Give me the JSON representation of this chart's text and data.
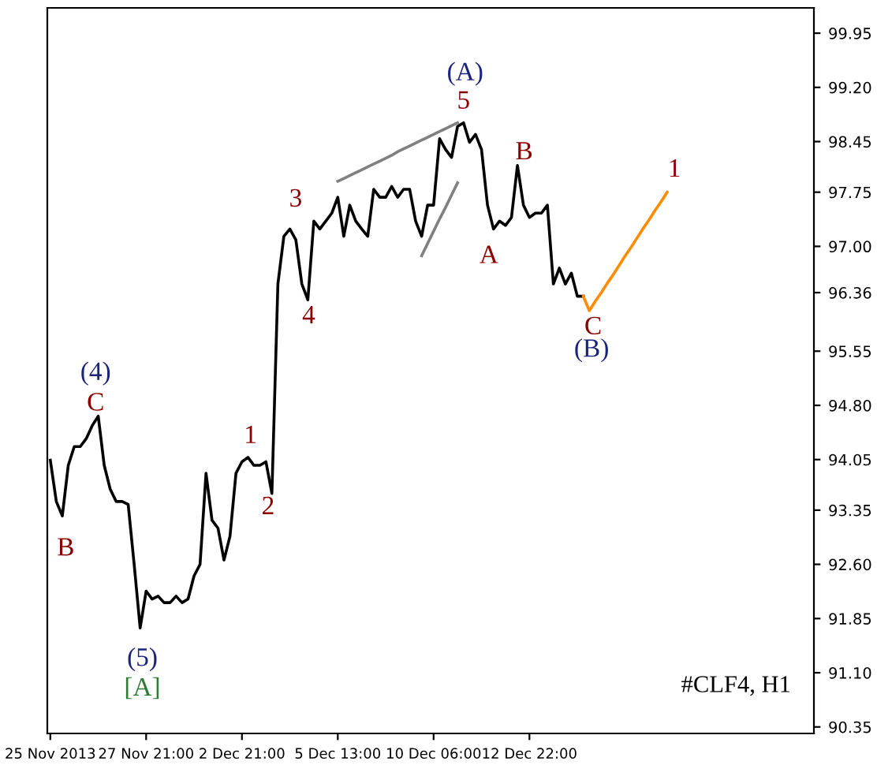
{
  "chart_data": {
    "type": "line",
    "categories": [
      "25 Nov 2013",
      null,
      null,
      null,
      null,
      null,
      null,
      null,
      null,
      null,
      null,
      null,
      null,
      null,
      null,
      null,
      "27 Nov 21:00",
      null,
      null,
      null,
      null,
      null,
      null,
      null,
      null,
      null,
      null,
      null,
      null,
      null,
      null,
      null,
      "2 Dec 21:00",
      null,
      null,
      null,
      null,
      null,
      null,
      null,
      null,
      null,
      null,
      null,
      null,
      null,
      null,
      null,
      "5 Dec 13:00",
      null,
      null,
      null,
      null,
      null,
      null,
      null,
      null,
      null,
      null,
      null,
      null,
      null,
      null,
      null,
      "10 Dec 06:00",
      null,
      null,
      null,
      null,
      null,
      null,
      null,
      null,
      null,
      null,
      null,
      null,
      null,
      null,
      null,
      "12 Dec 22:00",
      null,
      null,
      null,
      null,
      null,
      null,
      null,
      null,
      null,
      null,
      null,
      null,
      null,
      null,
      null,
      null,
      null,
      null,
      null,
      null,
      null,
      null,
      null,
      null,
      null,
      null,
      null,
      null,
      null,
      null,
      null,
      null,
      null,
      null,
      null,
      null,
      null,
      null,
      null,
      null,
      null,
      null,
      null,
      null,
      null,
      null,
      null
    ],
    "series": [
      {
        "color": "#000000",
        "values": [
          94.04,
          93.47,
          93.27,
          93.97,
          94.23,
          94.23,
          94.34,
          94.52,
          94.65,
          93.97,
          93.64,
          93.47,
          93.47,
          93.43,
          92.6,
          91.72,
          92.23,
          92.12,
          92.16,
          92.07,
          92.07,
          92.16,
          92.07,
          92.12,
          92.44,
          92.6,
          93.86,
          93.21,
          93.1,
          92.66,
          92.99,
          93.86,
          94.02,
          94.08,
          93.97,
          93.97,
          94.02,
          93.58,
          96.48,
          97.14,
          97.24,
          97.09,
          96.48,
          96.26,
          97.35,
          97.24,
          97.35,
          97.46,
          97.68,
          97.14,
          97.57,
          97.35,
          97.24,
          97.14,
          97.79,
          97.68,
          97.68,
          97.83,
          97.68,
          97.79,
          97.79,
          97.35,
          97.14,
          97.57,
          97.57,
          98.49,
          98.34,
          98.23,
          98.66,
          98.71,
          98.44,
          98.55,
          98.34,
          97.57,
          97.24,
          97.35,
          97.29,
          97.4,
          98.12,
          97.57,
          97.4,
          97.46,
          97.46,
          97.57,
          96.48,
          96.7,
          96.48,
          96.63,
          96.31,
          96.31,
          null,
          null,
          null,
          null,
          null,
          null,
          null,
          null,
          null,
          null,
          null,
          null,
          null,
          null,
          null,
          null,
          null,
          null,
          null,
          null,
          null,
          null,
          null,
          null,
          null,
          null,
          null,
          null,
          null,
          null,
          null,
          null,
          null,
          null,
          null,
          null,
          null,
          null
        ]
      },
      {
        "color": "#ff8c00",
        "values": [
          null,
          null,
          null,
          null,
          null,
          null,
          null,
          null,
          null,
          null,
          null,
          null,
          null,
          null,
          null,
          null,
          null,
          null,
          null,
          null,
          null,
          null,
          null,
          null,
          null,
          null,
          null,
          null,
          null,
          null,
          null,
          null,
          null,
          null,
          null,
          null,
          null,
          null,
          null,
          null,
          null,
          null,
          null,
          null,
          null,
          null,
          null,
          null,
          null,
          null,
          null,
          null,
          null,
          null,
          null,
          null,
          null,
          null,
          null,
          null,
          null,
          null,
          null,
          null,
          null,
          null,
          null,
          null,
          null,
          null,
          null,
          null,
          null,
          null,
          null,
          null,
          null,
          null,
          null,
          null,
          null,
          null,
          null,
          null,
          null,
          null,
          null,
          null,
          null,
          96.31,
          96.11,
          96.24,
          96.36,
          96.49,
          96.61,
          96.74,
          96.87,
          96.99,
          97.12,
          97.25,
          97.37,
          97.5,
          97.62,
          97.75,
          null,
          null,
          null,
          null,
          null,
          null,
          null,
          null,
          null,
          null,
          null,
          null,
          null,
          null,
          null,
          null,
          null,
          null,
          null,
          null,
          null,
          null,
          null,
          null
        ]
      },
      {
        "color": "#808080",
        "values": [
          null,
          null,
          null,
          null,
          null,
          null,
          null,
          null,
          null,
          null,
          null,
          null,
          null,
          null,
          null,
          null,
          null,
          null,
          null,
          null,
          null,
          null,
          null,
          null,
          null,
          null,
          null,
          null,
          null,
          null,
          null,
          null,
          null,
          null,
          null,
          null,
          null,
          null,
          null,
          null,
          null,
          null,
          null,
          null,
          null,
          null,
          null,
          null,
          97.9,
          97.94,
          97.98,
          98.02,
          98.06,
          98.1,
          98.14,
          98.18,
          98.22,
          98.26,
          98.31,
          98.35,
          98.39,
          98.43,
          98.47,
          98.51,
          98.55,
          98.59,
          98.63,
          98.67,
          98.71,
          null,
          null,
          null,
          null,
          null,
          null,
          null,
          null,
          null,
          null,
          null,
          null,
          null,
          null,
          null,
          null,
          null,
          null,
          null,
          null,
          null,
          null,
          null,
          null,
          null,
          null,
          null,
          null,
          null,
          null,
          null,
          null,
          null,
          null,
          null,
          null,
          null,
          null,
          null,
          null,
          null,
          null,
          null,
          null,
          null,
          null,
          null,
          null,
          null,
          null,
          null,
          null,
          null,
          null,
          null,
          null,
          null,
          null,
          null
        ]
      },
      {
        "color": "#808080",
        "values": [
          null,
          null,
          null,
          null,
          null,
          null,
          null,
          null,
          null,
          null,
          null,
          null,
          null,
          null,
          null,
          null,
          null,
          null,
          null,
          null,
          null,
          null,
          null,
          null,
          null,
          null,
          null,
          null,
          null,
          null,
          null,
          null,
          null,
          null,
          null,
          null,
          null,
          null,
          null,
          null,
          null,
          null,
          null,
          null,
          null,
          null,
          null,
          null,
          null,
          null,
          null,
          null,
          null,
          null,
          null,
          null,
          null,
          null,
          null,
          null,
          null,
          null,
          96.87,
          97.04,
          97.21,
          97.38,
          97.54,
          97.71,
          97.88,
          null,
          null,
          null,
          null,
          null,
          null,
          null,
          null,
          null,
          null,
          null,
          null,
          null,
          null,
          null,
          null,
          null,
          null,
          null,
          null,
          null,
          null,
          null,
          null,
          null,
          null,
          null,
          null,
          null,
          null,
          null,
          null,
          null,
          null,
          null,
          null,
          null,
          null,
          null,
          null,
          null,
          null,
          null,
          null,
          null,
          null,
          null,
          null,
          null,
          null,
          null,
          null,
          null,
          null,
          null,
          null,
          null,
          null,
          null
        ]
      }
    ],
    "ylim": [
      90.26,
      100.3
    ],
    "yticks": [
      99.95,
      {
        "value": 99.2,
        "label": "99.20"
      },
      98.45,
      97.75,
      {
        "value": 97.0,
        "label": "97.00"
      },
      96.36,
      95.55,
      {
        "value": 94.8,
        "label": "94.80"
      },
      94.05,
      93.35,
      {
        "value": 92.6,
        "label": "92.60"
      },
      91.85,
      {
        "value": 91.1,
        "label": "91.10"
      },
      90.35
    ],
    "grid": false,
    "legend": false,
    "annotations": [
      "(A)",
      "5",
      "3",
      "4",
      "B",
      "A",
      "1",
      "C",
      "(B)",
      "(4)",
      "C",
      "1",
      "2",
      "B",
      "(5)",
      "[A]",
      "#CLF4, H1"
    ]
  }
}
